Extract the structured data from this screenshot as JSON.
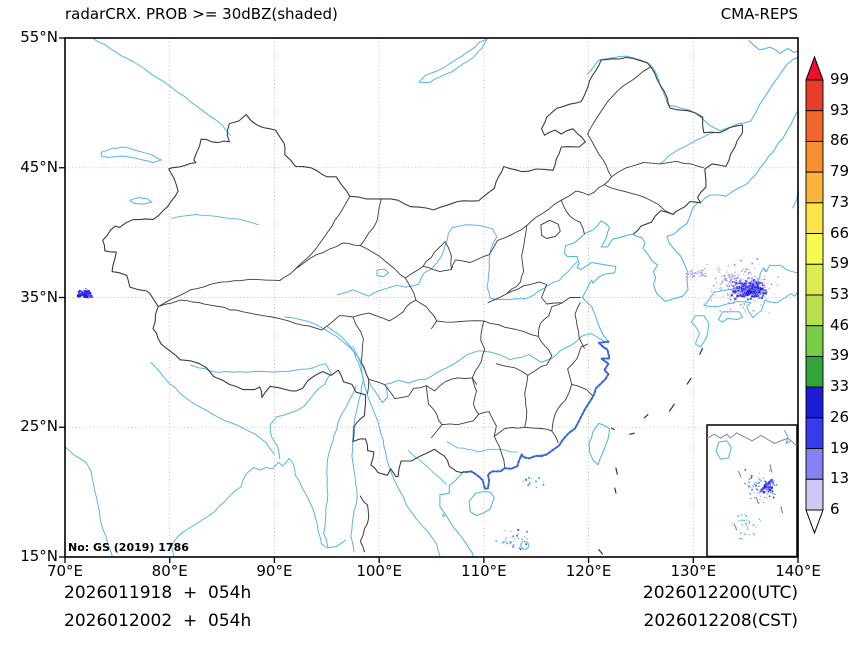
{
  "header": {
    "title": "radarCRX. PROB >= 30dBZ(shaded)",
    "source": "CMA-REPS"
  },
  "axes": {
    "lat_tick_labels": [
      "55°N",
      "45°N",
      "35°N",
      "25°N",
      "15°N"
    ],
    "lat_tick_values": [
      55,
      45,
      35,
      25,
      15
    ],
    "lon_tick_labels": [
      "70°E",
      "80°E",
      "90°E",
      "100°E",
      "110°E",
      "120°E",
      "130°E",
      "140°E"
    ],
    "lon_tick_values": [
      70,
      80,
      90,
      100,
      110,
      120,
      130,
      140
    ],
    "lon_range": [
      70,
      140
    ],
    "lat_range": [
      15,
      55
    ],
    "gridlines": "dotted"
  },
  "colorbar": {
    "tick_labels": [
      "99",
      "93",
      "86",
      "79",
      "73",
      "66",
      "59",
      "53",
      "46",
      "39",
      "33",
      "26",
      "19",
      "13",
      "6"
    ],
    "segment_colors_top_to_bottom": [
      "#e73c2a",
      "#f1662a",
      "#f78f2f",
      "#fbb43a",
      "#fee249",
      "#f9f953",
      "#dcee4f",
      "#b7e04c",
      "#77cd45",
      "#2fa53b",
      "#1d1dd8",
      "#3939ee",
      "#8582f1",
      "#cccaf5"
    ],
    "extend_over_color": "#e8102a",
    "extend_under_color": "#ffffff"
  },
  "footer": {
    "left_line1": "2026011918  +  054h",
    "left_line2": "2026012002  +  054h",
    "right_line1": "2026012200(UTC)",
    "right_line2": "2026012208(CST)"
  },
  "watermark": "No: GS (2019) 1786",
  "map_colors": {
    "coastline": "#57b5e8",
    "borders": "#3d3d3d",
    "grid": "#b0b0b0",
    "ragged_coast": "#3566d6",
    "inset_coast": "#8a8a8a"
  },
  "shaded_palette": {
    "dense-blue": [
      "#2424e0",
      "#3a3aee",
      "#5a55ea",
      "#8d89f0",
      "#1a1ad0"
    ],
    "sparse-lavender": [
      "#a9a4ec",
      "#938df0",
      "#c5c2f5",
      "#7b76ee"
    ],
    "cyan-dots": [
      "#45b0e8",
      "#57bce9",
      "#2f9fd8"
    ],
    "cyan-blue-dots": [
      "#45b0e8",
      "#3a3aee",
      "#7b76ee",
      "#57bce9"
    ],
    "lavender-dots": [
      "#b0aaee"
    ]
  },
  "shaded_regions": [
    {
      "name": "hindu-kush-cluster",
      "space": "map",
      "lon": [
        71.0,
        72.7
      ],
      "lat": [
        34.9,
        35.8
      ],
      "count": 80,
      "style": "dense-blue",
      "smax": 2.6
    },
    {
      "name": "sea-of-japan-core",
      "space": "map",
      "lon": [
        133.2,
        137.2
      ],
      "lat": [
        34.8,
        36.6
      ],
      "count": 330,
      "style": "dense-blue",
      "smax": 2.4
    },
    {
      "name": "sea-of-japan-halo",
      "space": "map",
      "lon": [
        130.2,
        138.8
      ],
      "lat": [
        33.2,
        38.6
      ],
      "count": 240,
      "style": "sparse-lavender",
      "smax": 1.7
    },
    {
      "name": "yellow-sea-wisp",
      "space": "map",
      "lon": [
        128.4,
        132.0
      ],
      "lat": [
        36.0,
        37.6
      ],
      "count": 50,
      "style": "sparse-lavender",
      "smax": 1.6
    },
    {
      "name": "guangdong-offshore-dots",
      "space": "map",
      "lon": [
        111.2,
        117.0
      ],
      "lat": [
        20.2,
        21.4
      ],
      "count": 16,
      "style": "cyan-dots",
      "smax": 2.2
    },
    {
      "name": "paracel-dots",
      "space": "map",
      "lon": [
        110.8,
        114.6
      ],
      "lat": [
        15.3,
        17.4
      ],
      "count": 32,
      "style": "cyan-blue-dots",
      "smax": 2.0
    },
    {
      "name": "vietnam-coast-dots",
      "space": "map",
      "lon": [
        105.9,
        106.3
      ],
      "lat": [
        18.0,
        18.5
      ],
      "count": 5,
      "style": "lavender-dots",
      "smax": 2.0
    },
    {
      "name": "inset-mid-scatter",
      "space": "inset",
      "x": [
        0.3,
        0.85
      ],
      "y": [
        0.3,
        0.62
      ],
      "count": 60,
      "style": "cyan-blue-dots",
      "smax": 1.8
    },
    {
      "name": "inset-streak",
      "space": "inset",
      "x": [
        0.58,
        0.76
      ],
      "y": [
        0.4,
        0.52
      ],
      "count": 40,
      "style": "dense-blue",
      "smax": 2.2
    },
    {
      "name": "inset-lower-scatter",
      "space": "inset",
      "x": [
        0.2,
        0.62
      ],
      "y": [
        0.6,
        0.95
      ],
      "count": 35,
      "style": "cyan-dots",
      "smax": 1.6
    }
  ]
}
